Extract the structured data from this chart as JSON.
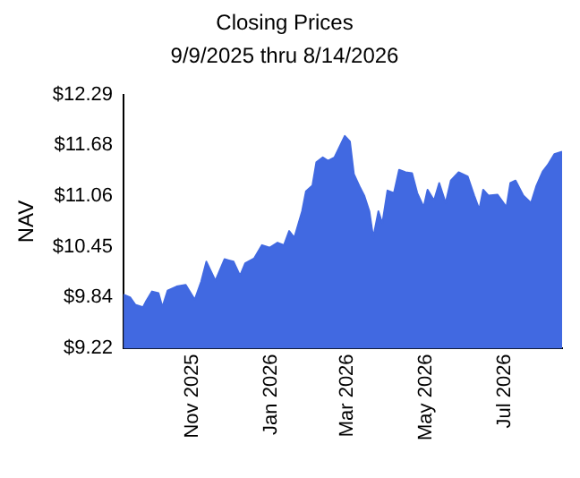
{
  "chart_data": {
    "type": "area",
    "title": "Closing Prices",
    "subtitle": "9/9/2025 thru 8/14/2026",
    "ylabel": "NAV",
    "x": [
      "2025-09-09",
      "2025-09-14",
      "2025-09-18",
      "2025-09-24",
      "2025-09-26",
      "2025-10-01",
      "2025-10-06",
      "2025-10-09",
      "2025-10-13",
      "2025-10-20",
      "2025-10-27",
      "2025-11-03",
      "2025-11-08",
      "2025-11-12",
      "2025-11-19",
      "2025-11-26",
      "2025-12-03",
      "2025-12-08",
      "2025-12-12",
      "2025-12-19",
      "2025-12-25",
      "2025-12-31",
      "2026-01-06",
      "2026-01-11",
      "2026-01-15",
      "2026-01-19",
      "2026-01-25",
      "2026-01-28",
      "2026-02-02",
      "2026-02-05",
      "2026-02-10",
      "2026-02-14",
      "2026-02-19",
      "2026-02-23",
      "2026-02-27",
      "2026-03-03",
      "2026-03-06",
      "2026-03-11",
      "2026-03-14",
      "2026-03-18",
      "2026-03-21",
      "2026-03-25",
      "2026-03-28",
      "2026-04-01",
      "2026-04-06",
      "2026-04-10",
      "2026-04-15",
      "2026-04-20",
      "2026-04-24",
      "2026-04-29",
      "2026-05-02",
      "2026-05-07",
      "2026-05-11",
      "2026-05-16",
      "2026-05-20",
      "2026-05-26",
      "2026-06-02",
      "2026-06-07",
      "2026-06-11",
      "2026-06-14",
      "2026-06-18",
      "2026-06-25",
      "2026-07-02",
      "2026-07-05",
      "2026-07-09",
      "2026-07-15",
      "2026-07-21",
      "2026-07-25",
      "2026-07-30",
      "2026-08-03",
      "2026-08-08",
      "2026-08-14"
    ],
    "series": [
      {
        "color": "#4169e1",
        "values": [
          9.87,
          9.84,
          9.75,
          9.72,
          9.78,
          9.91,
          9.89,
          9.72,
          9.92,
          9.97,
          9.99,
          9.81,
          10.03,
          10.27,
          10.04,
          10.3,
          10.27,
          10.1,
          10.25,
          10.31,
          10.47,
          10.44,
          10.5,
          10.47,
          10.64,
          10.56,
          10.88,
          11.12,
          11.19,
          11.47,
          11.53,
          11.49,
          11.53,
          11.66,
          11.79,
          11.72,
          11.33,
          11.16,
          11.07,
          10.88,
          10.56,
          10.88,
          10.73,
          11.13,
          11.1,
          11.38,
          11.35,
          11.34,
          11.1,
          10.93,
          11.14,
          11.01,
          11.22,
          10.98,
          11.25,
          11.35,
          11.3,
          11.07,
          10.9,
          11.14,
          11.07,
          11.08,
          10.93,
          11.22,
          11.25,
          11.07,
          10.98,
          11.18,
          11.36,
          11.44,
          11.57,
          11.6
        ]
      }
    ],
    "xlim": [
      "2025-09-09",
      "2026-08-14"
    ],
    "xticks": [
      {
        "value": "2025-11-01",
        "label": "Nov 2025"
      },
      {
        "value": "2026-01-01",
        "label": "Jan 2026"
      },
      {
        "value": "2026-03-01",
        "label": "Mar 2026"
      },
      {
        "value": "2026-05-01",
        "label": "May 2026"
      },
      {
        "value": "2026-07-01",
        "label": "Jul 2026"
      }
    ],
    "ylim": [
      9.22,
      12.29
    ],
    "yticks": [
      {
        "value": 9.22,
        "label": "$9.22"
      },
      {
        "value": 9.84,
        "label": "$9.84"
      },
      {
        "value": 10.45,
        "label": "$10.45"
      },
      {
        "value": 11.06,
        "label": "$11.06"
      },
      {
        "value": 11.68,
        "label": "$11.68"
      },
      {
        "value": 12.29,
        "label": "$12.29"
      }
    ],
    "grid": false,
    "legend": false,
    "marker": "none"
  }
}
